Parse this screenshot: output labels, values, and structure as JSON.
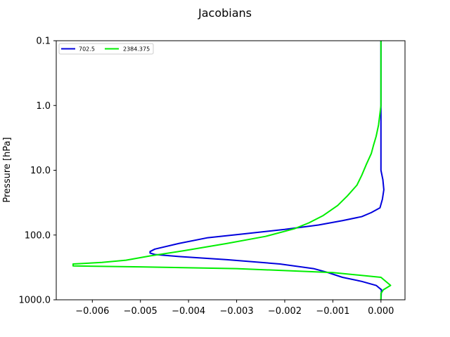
{
  "chart_data": {
    "type": "line",
    "title": "Jacobians",
    "xlabel": "",
    "ylabel": "Pressure [hPa]",
    "xlim": [
      -0.00675,
      0.0005
    ],
    "ylim": [
      1000.0,
      0.1
    ],
    "y_scale": "log",
    "y_inverted": true,
    "grid": false,
    "legend_position": "top-left",
    "x_ticks": [
      -0.006,
      -0.005,
      -0.004,
      -0.003,
      -0.002,
      -0.001,
      0.0
    ],
    "x_tick_labels": [
      "−0.006",
      "−0.005",
      "−0.004",
      "−0.003",
      "−0.002",
      "−0.001",
      "0.000"
    ],
    "y_ticks": [
      0.1,
      1.0,
      10.0,
      100.0,
      1000.0
    ],
    "y_tick_labels": [
      "0.1",
      "1.0",
      "10.0",
      "100.0",
      "1000.0"
    ],
    "series": [
      {
        "name": "702.5",
        "color": "#0000dd",
        "points": [
          [
            0.0,
            0.1
          ],
          [
            0.0,
            1.0
          ],
          [
            0.0,
            10.0
          ],
          [
            4e-05,
            14.0
          ],
          [
            6e-05,
            20.0
          ],
          [
            3e-05,
            28.0
          ],
          [
            -2e-05,
            38.0
          ],
          [
            -0.0002,
            45.0
          ],
          [
            -0.0004,
            52.0
          ],
          [
            -0.0008,
            60.0
          ],
          [
            -0.0013,
            70.0
          ],
          [
            -0.002,
            82.0
          ],
          [
            -0.0028,
            95.0
          ],
          [
            -0.0036,
            110.0
          ],
          [
            -0.0042,
            135.0
          ],
          [
            -0.0047,
            165.0
          ],
          [
            -0.0048,
            180.0
          ],
          [
            -0.0048,
            190.0
          ],
          [
            -0.0047,
            200.0
          ],
          [
            -0.0042,
            215.0
          ],
          [
            -0.0032,
            240.0
          ],
          [
            -0.0021,
            280.0
          ],
          [
            -0.0014,
            330.0
          ],
          [
            -0.0011,
            380.0
          ],
          [
            -0.0008,
            450.0
          ],
          [
            -0.0004,
            520.0
          ],
          [
            -0.0001,
            600.0
          ],
          [
            1e-05,
            700.0
          ],
          [
            0.0,
            1000.0
          ]
        ]
      },
      {
        "name": "2384.375",
        "color": "#00ee00",
        "points": [
          [
            0.0,
            0.1
          ],
          [
            0.0,
            1.0
          ],
          [
            -5e-05,
            2.0
          ],
          [
            -0.0001,
            3.0
          ],
          [
            -0.00015,
            4.0
          ],
          [
            -0.0002,
            5.5
          ],
          [
            -0.0003,
            8.0
          ],
          [
            -0.0004,
            12.0
          ],
          [
            -0.0005,
            17.0
          ],
          [
            -0.0007,
            25.0
          ],
          [
            -0.0009,
            35.0
          ],
          [
            -0.0012,
            50.0
          ],
          [
            -0.0015,
            65.0
          ],
          [
            -0.0018,
            80.0
          ],
          [
            -0.0024,
            105.0
          ],
          [
            -0.0032,
            135.0
          ],
          [
            -0.0041,
            175.0
          ],
          [
            -0.0048,
            210.0
          ],
          [
            -0.0053,
            245.0
          ],
          [
            -0.0058,
            265.0
          ],
          [
            -0.0064,
            280.0
          ],
          [
            -0.0064,
            300.0
          ],
          [
            -0.005,
            310.0
          ],
          [
            -0.003,
            330.0
          ],
          [
            -0.001,
            380.0
          ],
          [
            0.0,
            450.0
          ],
          [
            0.0002,
            600.0
          ],
          [
            5e-05,
            700.0
          ],
          [
            0.0,
            800.0
          ],
          [
            0.0,
            1000.0
          ]
        ]
      }
    ]
  }
}
